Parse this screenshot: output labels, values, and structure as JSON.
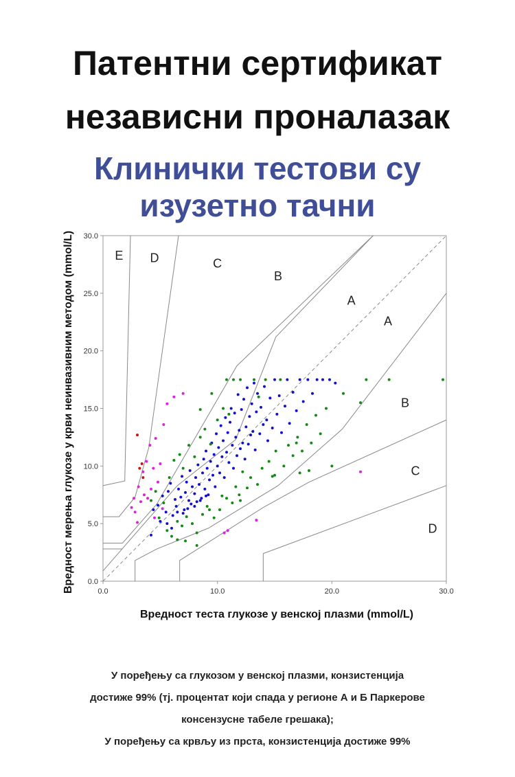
{
  "header": {
    "title_line1": "Патентни сертификат",
    "title_line2": "независни проналазак",
    "subtitle_line1": "Клинички тестови су",
    "subtitle_line2": "изузетно тачни"
  },
  "colors": {
    "subtitle": "#3f4e96",
    "zone_line": "#888888",
    "diagonal": "#888888",
    "blue_points": "#1111cc",
    "green_points": "#138a13",
    "magenta_points": "#dd22dd",
    "red_points": "#cc1111"
  },
  "caption": {
    "line1": "У поређењу са глукозом у венској плазми, конзистенција",
    "line2": "достиже 99% (тј. процентат који спада у регионе А и Б Паркерове",
    "line3": "консензусне табеле грешака);",
    "line4": "У поређењу са крвљу из прста, конзистенција достиже 99%"
  },
  "chart_data": {
    "type": "scatter",
    "xlabel": "Вредност теста глукозе у венској плазми (mmol/L)",
    "ylabel": "Вредност мерења глукозе у крви неинвазивним методом (mmol/L)",
    "xlim": [
      0,
      30
    ],
    "ylim": [
      0,
      30
    ],
    "x_ticks": [
      "0.0",
      "10.0",
      "20.0",
      "30.0"
    ],
    "y_ticks": [
      "0.0",
      "5.0",
      "10.0",
      "15.0",
      "20.0",
      "25.0",
      "30.0"
    ],
    "grid": false,
    "reference_line": "y = x (dashed)",
    "zone_labels": [
      {
        "text": "E",
        "x": 1.4,
        "y": 28.2
      },
      {
        "text": "D",
        "x": 4.5,
        "y": 28.0
      },
      {
        "text": "C",
        "x": 10.0,
        "y": 27.5
      },
      {
        "text": "B",
        "x": 15.3,
        "y": 26.4
      },
      {
        "text": "A",
        "x": 21.7,
        "y": 24.3
      },
      {
        "text": "A",
        "x": 24.9,
        "y": 22.5
      },
      {
        "text": "B",
        "x": 26.4,
        "y": 15.4
      },
      {
        "text": "C",
        "x": 27.3,
        "y": 9.5
      },
      {
        "text": "D",
        "x": 28.8,
        "y": 4.5
      }
    ],
    "zone_boundaries": [
      [
        [
          0,
          8.3
        ],
        [
          1.9,
          8.7
        ],
        [
          2.4,
          30
        ]
      ],
      [
        [
          0,
          5.6
        ],
        [
          1.4,
          5.6
        ],
        [
          2.8,
          7.3
        ],
        [
          4.0,
          11.6
        ],
        [
          6.6,
          30
        ]
      ],
      [
        [
          0,
          3.3
        ],
        [
          1.7,
          3.3
        ],
        [
          4.7,
          6.7
        ],
        [
          11.7,
          18.7
        ],
        [
          23.6,
          30
        ]
      ],
      [
        [
          0,
          0.9
        ],
        [
          6.5,
          8.3
        ],
        [
          11.6,
          12.3
        ],
        [
          15.1,
          21.2
        ],
        [
          23.6,
          30
        ]
      ],
      [
        [
          2.8,
          0
        ],
        [
          2.8,
          1.8
        ],
        [
          4.7,
          2.8
        ],
        [
          9.2,
          4.6
        ],
        [
          15.3,
          8.3
        ],
        [
          20.9,
          13.2
        ],
        [
          30,
          25
        ]
      ],
      [
        [
          6.7,
          0
        ],
        [
          6.7,
          1.8
        ],
        [
          14,
          6.4
        ],
        [
          18,
          8.6
        ],
        [
          30,
          14.0
        ]
      ],
      [
        [
          14,
          0
        ],
        [
          14,
          2.4
        ],
        [
          30,
          8.3
        ]
      ],
      [
        [
          0,
          2.8
        ],
        [
          1.7,
          2.8
        ]
      ]
    ],
    "series": [
      {
        "color": "blue",
        "points": [
          [
            4.4,
            6.2
          ],
          [
            4.8,
            6.6
          ],
          [
            5.2,
            7.4
          ],
          [
            5.5,
            6.0
          ],
          [
            5.7,
            7.8
          ],
          [
            5.9,
            8.5
          ],
          [
            6.1,
            5.7
          ],
          [
            6.3,
            7.1
          ],
          [
            6.4,
            6.5
          ],
          [
            6.6,
            8.0
          ],
          [
            6.8,
            7.3
          ],
          [
            6.9,
            9.1
          ],
          [
            7.1,
            6.2
          ],
          [
            7.2,
            7.7
          ],
          [
            7.3,
            8.6
          ],
          [
            7.5,
            7.0
          ],
          [
            7.6,
            9.6
          ],
          [
            7.7,
            6.7
          ],
          [
            7.8,
            8.2
          ],
          [
            8.0,
            7.6
          ],
          [
            8.1,
            9.0
          ],
          [
            8.2,
            6.9
          ],
          [
            8.3,
            10.1
          ],
          [
            8.4,
            8.4
          ],
          [
            8.6,
            7.2
          ],
          [
            8.7,
            9.4
          ],
          [
            8.8,
            10.6
          ],
          [
            8.9,
            8.0
          ],
          [
            9.0,
            11.3
          ],
          [
            9.1,
            9.8
          ],
          [
            9.2,
            7.5
          ],
          [
            9.3,
            8.8
          ],
          [
            9.4,
            10.4
          ],
          [
            9.5,
            12.0
          ],
          [
            9.6,
            9.2
          ],
          [
            9.7,
            11.0
          ],
          [
            9.8,
            8.2
          ],
          [
            9.9,
            12.8
          ],
          [
            10.0,
            10.0
          ],
          [
            10.1,
            11.6
          ],
          [
            10.2,
            9.4
          ],
          [
            10.3,
            13.5
          ],
          [
            10.4,
            10.8
          ],
          [
            10.5,
            12.2
          ],
          [
            10.6,
            9.0
          ],
          [
            10.7,
            14.2
          ],
          [
            10.8,
            11.2
          ],
          [
            10.9,
            12.9
          ],
          [
            11.0,
            10.3
          ],
          [
            11.1,
            13.8
          ],
          [
            11.2,
            15.0
          ],
          [
            11.3,
            11.8
          ],
          [
            11.4,
            9.8
          ],
          [
            11.5,
            14.6
          ],
          [
            11.6,
            12.5
          ],
          [
            11.7,
            10.9
          ],
          [
            11.8,
            16.2
          ],
          [
            11.9,
            13.1
          ],
          [
            12.0,
            11.5
          ],
          [
            12.1,
            14.9
          ],
          [
            12.2,
            12.0
          ],
          [
            12.3,
            15.8
          ],
          [
            12.4,
            10.6
          ],
          [
            12.5,
            13.4
          ],
          [
            12.6,
            16.8
          ],
          [
            12.7,
            11.9
          ],
          [
            12.8,
            14.3
          ],
          [
            12.9,
            12.7
          ],
          [
            13.0,
            15.4
          ],
          [
            13.1,
            13.0
          ],
          [
            13.2,
            17.2
          ],
          [
            13.3,
            11.4
          ],
          [
            13.4,
            14.7
          ],
          [
            13.5,
            16.3
          ],
          [
            13.7,
            12.8
          ],
          [
            13.8,
            15.1
          ],
          [
            14.0,
            13.6
          ],
          [
            14.1,
            16.9
          ],
          [
            14.3,
            14.0
          ],
          [
            14.4,
            12.2
          ],
          [
            14.6,
            15.9
          ],
          [
            14.8,
            13.3
          ],
          [
            15.0,
            17.5
          ],
          [
            15.2,
            14.5
          ],
          [
            15.4,
            16.1
          ],
          [
            15.6,
            12.9
          ],
          [
            15.9,
            15.2
          ],
          [
            16.1,
            17.5
          ],
          [
            16.3,
            13.7
          ],
          [
            16.6,
            16.4
          ],
          [
            16.9,
            14.8
          ],
          [
            17.2,
            17.5
          ],
          [
            17.5,
            15.6
          ],
          [
            17.9,
            17.5
          ],
          [
            18.3,
            16.3
          ],
          [
            18.7,
            17.5
          ],
          [
            19.2,
            17.5
          ],
          [
            19.8,
            17.5
          ],
          [
            20.3,
            17.2
          ],
          [
            5.0,
            5.2
          ],
          [
            5.6,
            5.0
          ],
          [
            6.0,
            4.6
          ],
          [
            4.2,
            4.0
          ],
          [
            6.5,
            6.0
          ],
          [
            7.0,
            5.9
          ],
          [
            7.4,
            6.3
          ],
          [
            8.0,
            6.5
          ],
          [
            8.5,
            7.0
          ],
          [
            9.0,
            7.4
          ]
        ]
      },
      {
        "color": "green",
        "points": [
          [
            4.2,
            7.0
          ],
          [
            4.6,
            7.8
          ],
          [
            4.9,
            5.5
          ],
          [
            5.3,
            6.8
          ],
          [
            5.6,
            4.4
          ],
          [
            5.8,
            9.0
          ],
          [
            6.0,
            3.9
          ],
          [
            6.2,
            10.5
          ],
          [
            6.5,
            5.2
          ],
          [
            6.7,
            11.0
          ],
          [
            6.9,
            4.8
          ],
          [
            7.0,
            9.8
          ],
          [
            7.3,
            5.6
          ],
          [
            7.5,
            11.8
          ],
          [
            7.8,
            5.0
          ],
          [
            8.0,
            10.8
          ],
          [
            8.2,
            4.2
          ],
          [
            8.5,
            12.5
          ],
          [
            8.7,
            5.8
          ],
          [
            8.9,
            13.2
          ],
          [
            9.1,
            6.5
          ],
          [
            9.4,
            11.9
          ],
          [
            9.7,
            5.5
          ],
          [
            10.0,
            14.0
          ],
          [
            10.2,
            6.2
          ],
          [
            10.5,
            15.0
          ],
          [
            10.8,
            7.2
          ],
          [
            11.0,
            14.5
          ],
          [
            11.3,
            6.8
          ],
          [
            11.6,
            8.2
          ],
          [
            11.9,
            7.5
          ],
          [
            12.2,
            9.5
          ],
          [
            12.6,
            8.1
          ],
          [
            12.9,
            9.0
          ],
          [
            13.2,
            17.5
          ],
          [
            13.5,
            8.4
          ],
          [
            13.9,
            9.8
          ],
          [
            14.2,
            17.5
          ],
          [
            14.5,
            10.4
          ],
          [
            14.8,
            9.1
          ],
          [
            15.1,
            11.3
          ],
          [
            15.5,
            17.5
          ],
          [
            15.8,
            10.0
          ],
          [
            16.2,
            11.8
          ],
          [
            16.6,
            10.9
          ],
          [
            17.0,
            12.5
          ],
          [
            17.4,
            11.3
          ],
          [
            17.8,
            13.6
          ],
          [
            18.2,
            12.0
          ],
          [
            18.6,
            14.4
          ],
          [
            19.0,
            12.8
          ],
          [
            19.5,
            15.0
          ],
          [
            20.0,
            10.0
          ],
          [
            21.0,
            16.3
          ],
          [
            22.5,
            15.5
          ],
          [
            23.0,
            17.5
          ],
          [
            25.0,
            17.5
          ],
          [
            29.7,
            17.5
          ],
          [
            10.8,
            17.5
          ],
          [
            11.4,
            17.5
          ],
          [
            12.0,
            17.5
          ],
          [
            9.5,
            16.3
          ],
          [
            8.5,
            14.9
          ],
          [
            13.6,
            16.0
          ],
          [
            16.9,
            12.0
          ],
          [
            18.0,
            9.6
          ],
          [
            17.2,
            9.4
          ],
          [
            15.0,
            9.2
          ],
          [
            7.2,
            3.5
          ],
          [
            8.2,
            3.1
          ],
          [
            6.5,
            3.6
          ],
          [
            9.3,
            6.2
          ],
          [
            12.0,
            7.0
          ],
          [
            10.4,
            7.4
          ]
        ]
      },
      {
        "color": "magenta",
        "points": [
          [
            2.5,
            6.4
          ],
          [
            2.8,
            6.0
          ],
          [
            3.1,
            8.2
          ],
          [
            3.3,
            6.9
          ],
          [
            3.5,
            9.5
          ],
          [
            3.6,
            7.5
          ],
          [
            3.8,
            10.4
          ],
          [
            3.9,
            7.2
          ],
          [
            4.1,
            11.8
          ],
          [
            4.2,
            8.0
          ],
          [
            4.4,
            9.8
          ],
          [
            4.6,
            12.4
          ],
          [
            4.8,
            8.6
          ],
          [
            5.0,
            10.2
          ],
          [
            5.3,
            13.6
          ],
          [
            5.6,
            15.4
          ],
          [
            6.2,
            16.0
          ],
          [
            7.0,
            16.3
          ],
          [
            3.0,
            5.1
          ],
          [
            2.7,
            7.2
          ],
          [
            4.5,
            5.5
          ],
          [
            5.2,
            6.3
          ],
          [
            10.6,
            4.2
          ],
          [
            10.9,
            4.4
          ],
          [
            13.4,
            5.3
          ],
          [
            22.5,
            9.5
          ]
        ]
      },
      {
        "color": "red",
        "points": [
          [
            3.0,
            12.7
          ],
          [
            3.4,
            10.2
          ],
          [
            3.2,
            9.8
          ],
          [
            3.5,
            9.0
          ]
        ]
      }
    ]
  }
}
